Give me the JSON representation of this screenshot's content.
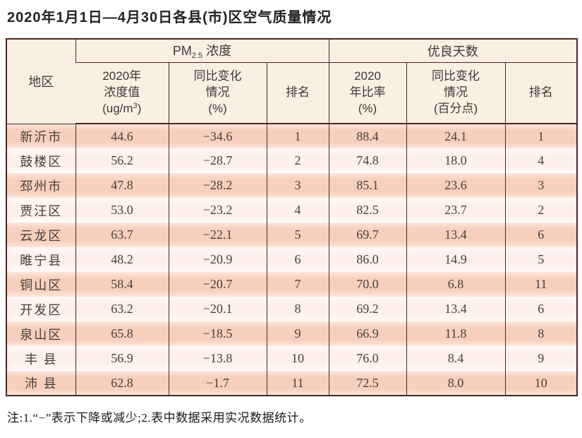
{
  "page": {
    "title": "2020年1月1日—4月30日各县(市)区空气质量情况",
    "note": "注:1.“−”表示下降或减少;2.表中数据采用实况数据统计。"
  },
  "colors": {
    "table_border": "#4a2822",
    "header_bg": "#f9efe2",
    "row_odd_bg": "#f8cfbd",
    "row_even_bg": "#fdf0ea",
    "text": "#45403c"
  },
  "table": {
    "head": {
      "region": "地区",
      "pm_group": {
        "prefix": "PM",
        "sub": "2.5",
        "suffix": " 浓度"
      },
      "good_days_group": "优良天数",
      "pm_value": {
        "line1": "2020年",
        "line2": "浓度值",
        "unit_prefix": "(ug/m",
        "unit_sup": "3",
        "unit_suffix": ")"
      },
      "pm_change": {
        "line1": "同比变化",
        "line2": "情况",
        "line3": "(%)"
      },
      "pm_rank": "排名",
      "gd_ratio": {
        "line1": "2020",
        "line2": "年比率",
        "line3": "(%)"
      },
      "gd_change": {
        "line1": "同比变化",
        "line2": "情况",
        "line3": "(百分点)"
      },
      "gd_rank": "排名"
    },
    "rows": [
      {
        "region": "新沂市",
        "pm_value": "44.6",
        "pm_change": "−34.6",
        "pm_rank": "1",
        "gd_ratio": "88.4",
        "gd_change": "24.1",
        "gd_rank": "1"
      },
      {
        "region": "鼓楼区",
        "pm_value": "56.2",
        "pm_change": "−28.7",
        "pm_rank": "2",
        "gd_ratio": "74.8",
        "gd_change": "18.0",
        "gd_rank": "4"
      },
      {
        "region": "邳州市",
        "pm_value": "47.8",
        "pm_change": "−28.2",
        "pm_rank": "3",
        "gd_ratio": "85.1",
        "gd_change": "23.6",
        "gd_rank": "3"
      },
      {
        "region": "贾汪区",
        "pm_value": "53.0",
        "pm_change": "−23.2",
        "pm_rank": "4",
        "gd_ratio": "82.5",
        "gd_change": "23.7",
        "gd_rank": "2"
      },
      {
        "region": "云龙区",
        "pm_value": "63.7",
        "pm_change": "−22.1",
        "pm_rank": "5",
        "gd_ratio": "69.7",
        "gd_change": "13.4",
        "gd_rank": "6"
      },
      {
        "region": "睢宁县",
        "pm_value": "48.2",
        "pm_change": "−20.9",
        "pm_rank": "6",
        "gd_ratio": "86.0",
        "gd_change": "14.9",
        "gd_rank": "5"
      },
      {
        "region": "铜山区",
        "pm_value": "58.4",
        "pm_change": "−20.7",
        "pm_rank": "7",
        "gd_ratio": "70.0",
        "gd_change": "6.8",
        "gd_rank": "11"
      },
      {
        "region": "开发区",
        "pm_value": "63.2",
        "pm_change": "−20.1",
        "pm_rank": "8",
        "gd_ratio": "69.2",
        "gd_change": "13.4",
        "gd_rank": "6"
      },
      {
        "region": "泉山区",
        "pm_value": "65.8",
        "pm_change": "−18.5",
        "pm_rank": "9",
        "gd_ratio": "66.9",
        "gd_change": "11.8",
        "gd_rank": "8"
      },
      {
        "region": "丰 县",
        "pm_value": "56.9",
        "pm_change": "−13.8",
        "pm_rank": "10",
        "gd_ratio": "76.0",
        "gd_change": "8.4",
        "gd_rank": "9"
      },
      {
        "region": "沛 县",
        "pm_value": "62.8",
        "pm_change": "−1.7",
        "pm_rank": "11",
        "gd_ratio": "72.5",
        "gd_change": "8.0",
        "gd_rank": "10"
      }
    ]
  }
}
